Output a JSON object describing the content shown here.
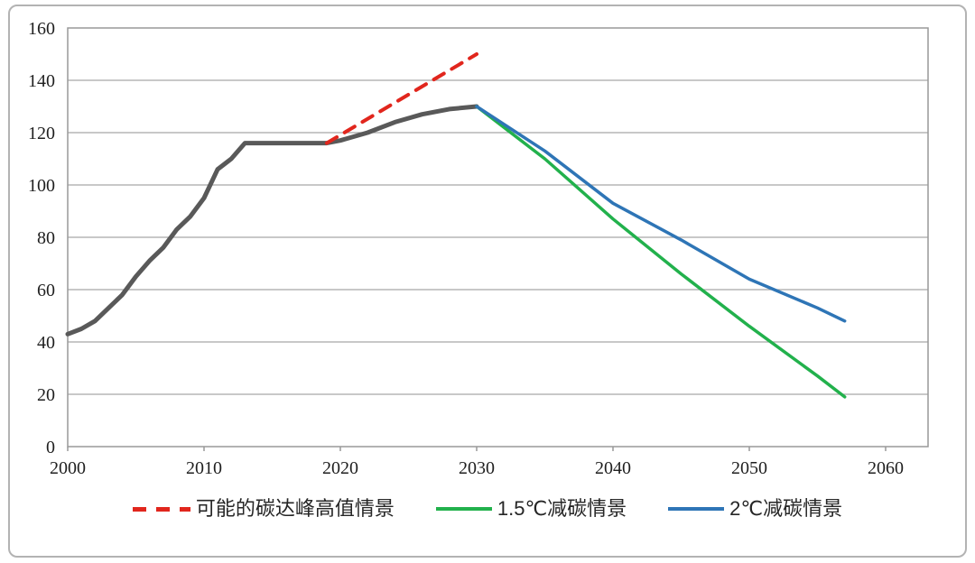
{
  "figure": {
    "background": "#ffffff",
    "frame_border_color": "#b3b3b3"
  },
  "chart_data": {
    "type": "line",
    "title": "",
    "xlabel": "",
    "ylabel": "",
    "grid": "horizontal",
    "x_axis": {
      "min": 2000,
      "max": 2063,
      "ticks": [
        2000,
        2010,
        2020,
        2030,
        2040,
        2050,
        2060
      ]
    },
    "y_axis": {
      "min": 0,
      "max": 160,
      "ticks": [
        0,
        20,
        40,
        60,
        80,
        100,
        120,
        140,
        160
      ]
    },
    "axis_color": "#999999",
    "gridline_color": "#a6a6a6",
    "series": [
      {
        "id": "historical",
        "name": "",
        "color": "#595959",
        "style": "solid",
        "width": 5,
        "points": [
          [
            2000,
            43
          ],
          [
            2001,
            45
          ],
          [
            2002,
            48
          ],
          [
            2003,
            53
          ],
          [
            2004,
            58
          ],
          [
            2005,
            65
          ],
          [
            2006,
            71
          ],
          [
            2007,
            76
          ],
          [
            2008,
            83
          ],
          [
            2009,
            88
          ],
          [
            2010,
            95
          ],
          [
            2011,
            106
          ],
          [
            2012,
            110
          ],
          [
            2013,
            116
          ],
          [
            2019,
            116
          ],
          [
            2020,
            117
          ],
          [
            2022,
            120
          ],
          [
            2024,
            124
          ],
          [
            2026,
            127
          ],
          [
            2028,
            129
          ],
          [
            2030,
            130
          ]
        ]
      },
      {
        "id": "peak-high-scenario",
        "name": "可能的碳达峰高值情景",
        "color": "#e1261d",
        "style": "dashed",
        "width": 4,
        "points": [
          [
            2019,
            116
          ],
          [
            2030,
            150
          ]
        ]
      },
      {
        "id": "reduction-1-5c",
        "name": "1.5℃减碳情景",
        "color": "#22b14c",
        "style": "solid",
        "width": 3.5,
        "points": [
          [
            2030,
            130
          ],
          [
            2035,
            110
          ],
          [
            2040,
            87
          ],
          [
            2045,
            66
          ],
          [
            2050,
            46
          ],
          [
            2055,
            27
          ],
          [
            2057,
            19
          ]
        ]
      },
      {
        "id": "reduction-2c",
        "name": "2℃减碳情景",
        "color": "#2e75b6",
        "style": "solid",
        "width": 3.5,
        "points": [
          [
            2030,
            130
          ],
          [
            2035,
            113
          ],
          [
            2040,
            93
          ],
          [
            2045,
            79
          ],
          [
            2050,
            64
          ],
          [
            2055,
            53
          ],
          [
            2057,
            48
          ]
        ]
      }
    ],
    "legend": {
      "position": "bottom",
      "items": [
        {
          "label": "可能的碳达峰高值情景",
          "color": "#e1261d",
          "style": "dashed"
        },
        {
          "label": "1.5℃减碳情景",
          "color": "#22b14c",
          "style": "solid"
        },
        {
          "label": "2℃减碳情景",
          "color": "#2e75b6",
          "style": "solid"
        }
      ]
    }
  }
}
